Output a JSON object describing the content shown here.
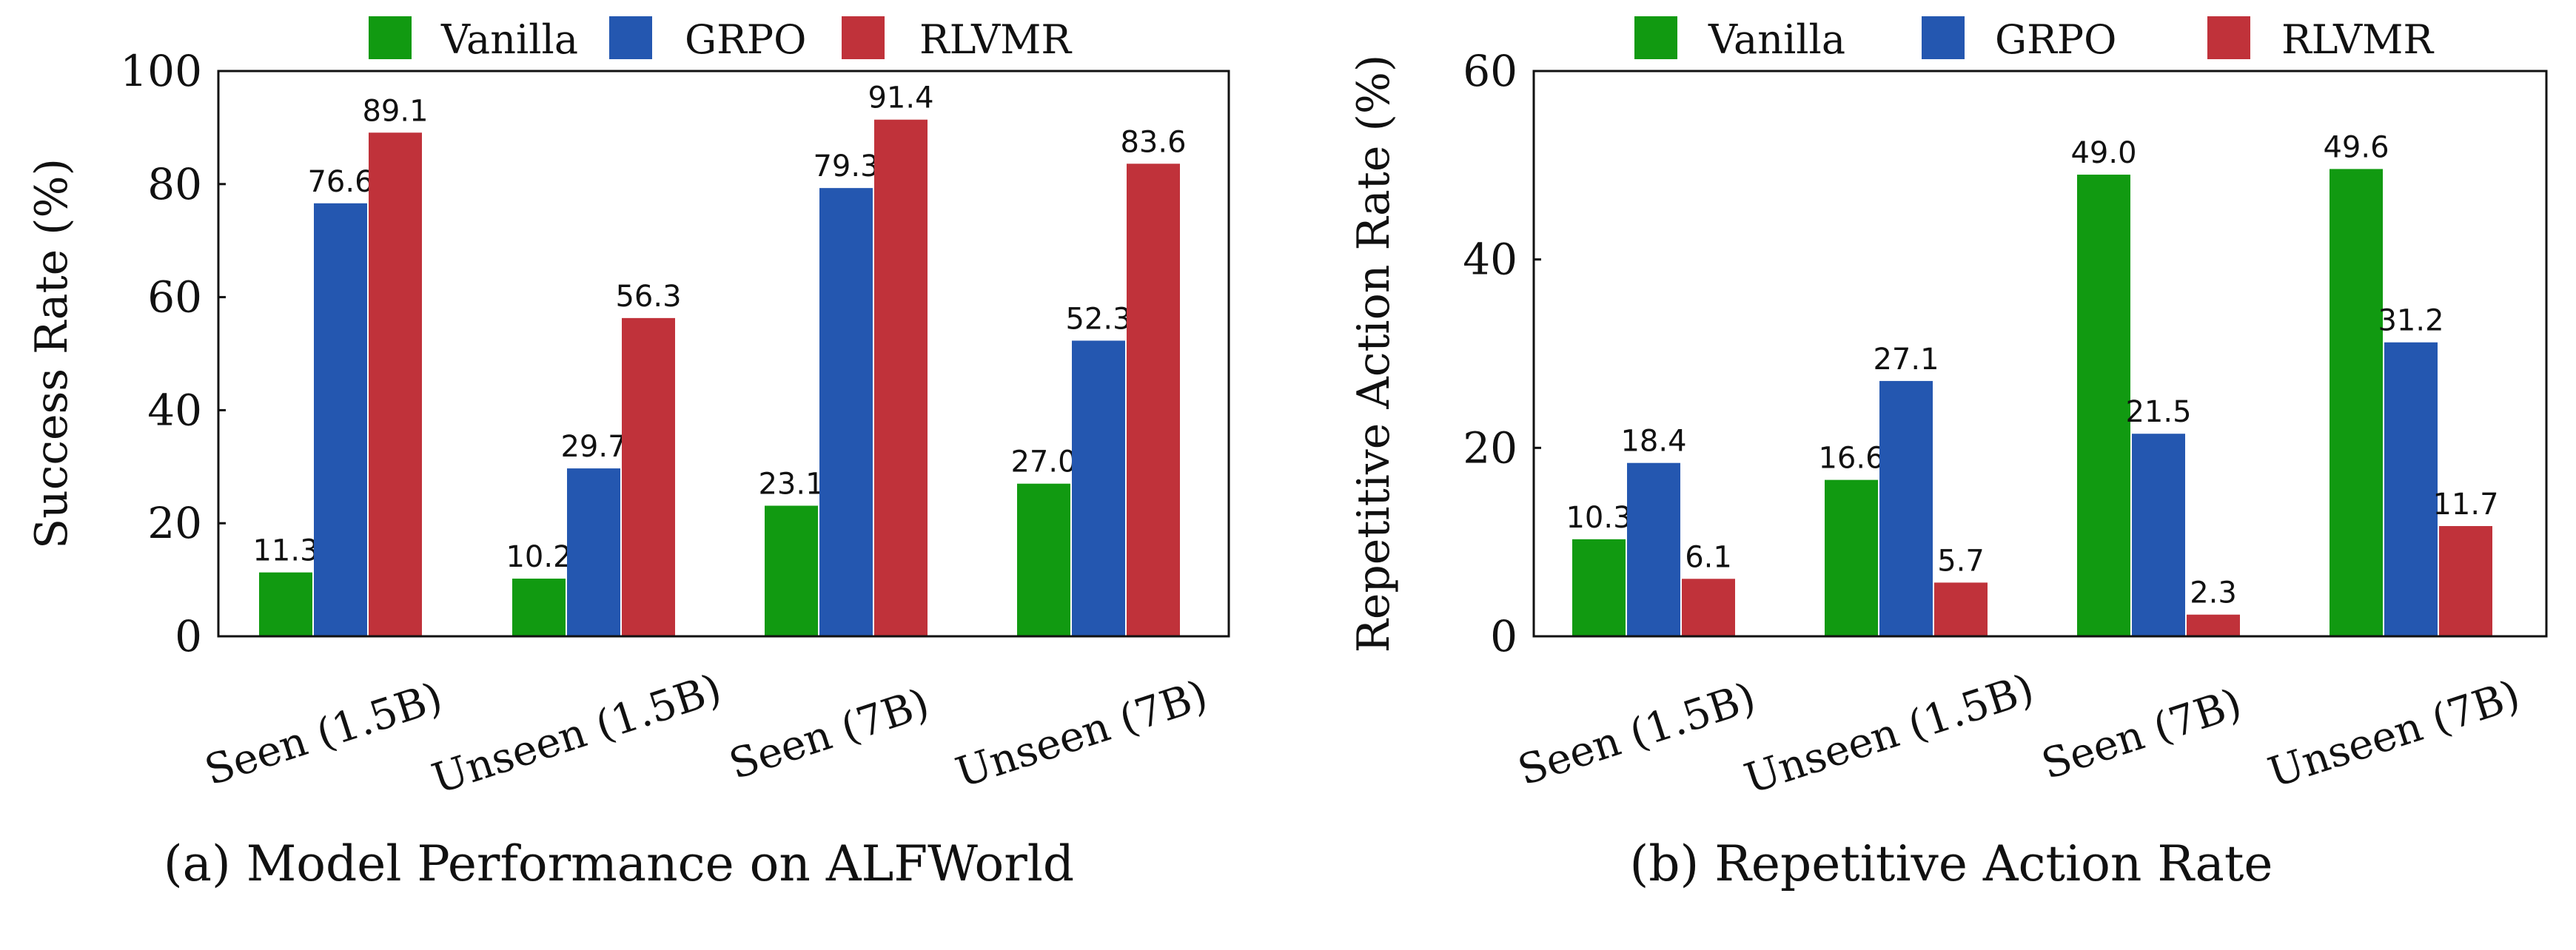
{
  "chart_data": [
    {
      "type": "bar",
      "title": "(a) Model Performance on ALFWorld",
      "xlabel": "",
      "ylabel": "Success Rate (%)",
      "ylim": [
        0,
        100
      ],
      "yticks": [
        0,
        20,
        40,
        60,
        80,
        100
      ],
      "categories": [
        "Seen (1.5B)",
        "Unseen (1.5B)",
        "Seen (7B)",
        "Unseen (7B)"
      ],
      "legend_position": "top",
      "grid": false,
      "series": [
        {
          "name": "Vanilla",
          "color": "#119a11",
          "values": [
            11.3,
            10.2,
            23.1,
            27.0
          ],
          "labels": [
            "11.3",
            "10.2",
            "23.1",
            "27.0"
          ]
        },
        {
          "name": "GRPO",
          "color": "#2457b0",
          "values": [
            76.6,
            29.7,
            79.3,
            52.3
          ],
          "labels": [
            "76.6",
            "29.7",
            "79.3",
            "52.3"
          ]
        },
        {
          "name": "RLVMR",
          "color": "#c0323a",
          "values": [
            89.1,
            56.3,
            91.4,
            83.6
          ],
          "labels": [
            "89.1",
            "56.3",
            "91.4",
            "83.6"
          ]
        }
      ]
    },
    {
      "type": "bar",
      "title": "(b) Repetitive Action Rate",
      "xlabel": "",
      "ylabel": "Repetitive Action Rate (%)",
      "ylim": [
        0,
        60
      ],
      "yticks": [
        0,
        20,
        40,
        60
      ],
      "categories": [
        "Seen (1.5B)",
        "Unseen (1.5B)",
        "Seen (7B)",
        "Unseen (7B)"
      ],
      "legend_position": "top",
      "grid": false,
      "series": [
        {
          "name": "Vanilla",
          "color": "#119a11",
          "values": [
            10.3,
            16.6,
            49.0,
            49.6
          ],
          "labels": [
            "10.3",
            "16.6",
            "49.0",
            "49.6"
          ]
        },
        {
          "name": "GRPO",
          "color": "#2457b0",
          "values": [
            18.4,
            27.1,
            21.5,
            31.2
          ],
          "labels": [
            "18.4",
            "27.1",
            "21.5",
            "31.2"
          ]
        },
        {
          "name": "RLVMR",
          "color": "#c0323a",
          "values": [
            6.1,
            5.7,
            2.3,
            11.7
          ],
          "labels": [
            "6.1",
            "5.7",
            "2.3",
            "11.7"
          ]
        }
      ]
    }
  ]
}
